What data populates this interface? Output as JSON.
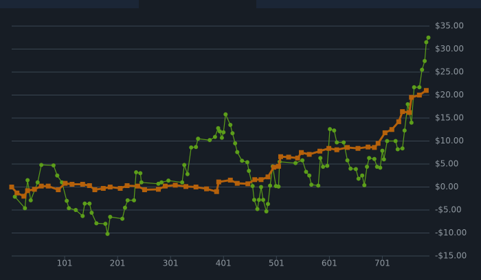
{
  "chart_data": {
    "type": "line",
    "xlim": [
      1,
      790
    ],
    "xticks": [
      101,
      201,
      301,
      401,
      501,
      601,
      701
    ],
    "ylim": [
      -15,
      35
    ],
    "yticks": [
      {
        "value": -15,
        "label": "-$15.00"
      },
      {
        "value": -10,
        "label": "-$10.00"
      },
      {
        "value": -5,
        "label": "-$5.00"
      },
      {
        "value": 0,
        "label": "$0.00"
      },
      {
        "value": 5,
        "label": "$5.00"
      },
      {
        "value": 10,
        "label": "$10.00"
      },
      {
        "value": 15,
        "label": "$15.00"
      },
      {
        "value": 20,
        "label": "$20.00"
      },
      {
        "value": 25,
        "label": "$25.00"
      },
      {
        "value": 30,
        "label": "$30.00"
      },
      {
        "value": 35,
        "label": "$35.00"
      }
    ],
    "grid": true,
    "series": [
      {
        "color": "#5c9e1a",
        "marker": "circle",
        "x": [
          7,
          26,
          31,
          37,
          50,
          57,
          80,
          87,
          96,
          105,
          109,
          122,
          135,
          139,
          148,
          152,
          161,
          178,
          182,
          187,
          210,
          215,
          220,
          232,
          236,
          244,
          246,
          278,
          284,
          297,
          323,
          327,
          333,
          340,
          349,
          353,
          375,
          385,
          391,
          394,
          398,
          401,
          405,
          414,
          418,
          423,
          427,
          436,
          446,
          449,
          456,
          459,
          465,
          468,
          472,
          476,
          482,
          485,
          489,
          494,
          500,
          505,
          507,
          537,
          550,
          557,
          563,
          567,
          580,
          584,
          589,
          597,
          602,
          610,
          615,
          628,
          635,
          641,
          651,
          656,
          663,
          667,
          672,
          676,
          686,
          691,
          697,
          701,
          704,
          710,
          726,
          730,
          739,
          743,
          749,
          756,
          761,
          771,
          776,
          781,
          784,
          788
        ],
        "values": [
          -2.1,
          -4.6,
          1.5,
          -2.9,
          1.0,
          4.8,
          4.7,
          2.5,
          1.0,
          -3.0,
          -4.6,
          -5.0,
          -6.3,
          -3.6,
          -3.6,
          -5.6,
          -7.9,
          -8.0,
          -10.2,
          -6.5,
          -6.9,
          -4.5,
          -2.9,
          -2.9,
          3.2,
          3.0,
          1.0,
          0.7,
          1.0,
          1.4,
          1.0,
          4.8,
          2.8,
          8.6,
          8.7,
          10.5,
          10.2,
          10.9,
          12.8,
          12.1,
          10.7,
          11.9,
          15.8,
          13.5,
          11.7,
          9.5,
          7.6,
          5.7,
          5.4,
          3.5,
          0.2,
          -2.8,
          -4.8,
          -2.8,
          0.0,
          -2.8,
          -5.3,
          -3.7,
          0.3,
          4.5,
          0.2,
          0.1,
          5.5,
          5.2,
          5.8,
          3.3,
          2.5,
          0.5,
          0.3,
          6.3,
          4.4,
          4.6,
          12.6,
          12.3,
          9.7,
          9.7,
          5.8,
          4.0,
          3.9,
          1.8,
          2.5,
          0.4,
          4.4,
          6.3,
          6.1,
          4.4,
          4.2,
          7.9,
          6.0,
          10.0,
          10.0,
          8.2,
          8.4,
          12.3,
          18.0,
          14.0,
          21.7,
          21.7,
          25.5,
          27.4,
          31.5,
          32.5
        ]
      },
      {
        "color": "#b5610b",
        "marker": "square",
        "x": [
          1,
          11,
          24,
          31,
          44,
          57,
          70,
          89,
          102,
          115,
          135,
          148,
          158,
          174,
          187,
          206,
          219,
          239,
          252,
          278,
          291,
          310,
          330,
          349,
          369,
          388,
          392,
          414,
          427,
          447,
          460,
          472,
          485,
          496,
          505,
          509,
          524,
          541,
          548,
          563,
          583,
          600,
          615,
          635,
          655,
          674,
          686,
          693,
          706,
          719,
          732,
          739,
          752,
          756,
          771,
          784
        ],
        "values": [
          0.0,
          -1.3,
          -2.0,
          -0.8,
          -0.5,
          0.2,
          0.2,
          -0.6,
          0.8,
          0.6,
          0.6,
          0.3,
          -0.6,
          -0.3,
          0.0,
          -0.3,
          0.3,
          0.2,
          -0.6,
          -0.5,
          0.2,
          0.4,
          0.1,
          0.0,
          -0.4,
          -1.0,
          1.1,
          1.5,
          0.8,
          0.7,
          1.6,
          1.6,
          2.2,
          4.3,
          4.5,
          6.6,
          6.5,
          6.3,
          7.5,
          7.1,
          7.8,
          8.4,
          8.1,
          8.6,
          8.4,
          8.7,
          8.6,
          9.5,
          11.8,
          12.5,
          14.2,
          16.4,
          16.2,
          19.5,
          20.0,
          21.0
        ]
      }
    ]
  }
}
